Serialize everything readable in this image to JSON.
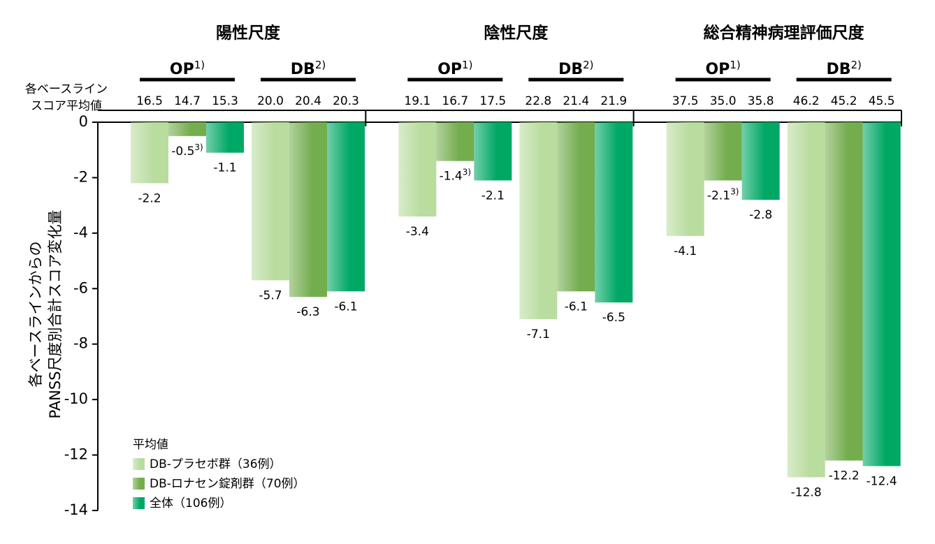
{
  "chart_data": {
    "type": "bar",
    "y_label": [
      "各ベースラインからの",
      "PANSS尺度別合計スコア変化量"
    ],
    "groups": [
      "陽性尺度",
      "陰性尺度",
      "総合精神病理評価尺度"
    ],
    "categories": [
      "OP",
      "DB",
      "OP",
      "DB",
      "OP",
      "DB"
    ],
    "category_notes": [
      "1)",
      "2)",
      "1)",
      "2)",
      "1)",
      "2)"
    ],
    "baseline_label": [
      "各ベースライン",
      "スコア平均値"
    ],
    "legend_title": "平均値",
    "series": [
      {
        "name": "DB-プラセボ群（36例）",
        "color": "#b9dc9f",
        "values": [
          -2.2,
          -5.7,
          -3.4,
          -7.1,
          -4.1,
          -12.8
        ],
        "baseline": [
          16.5,
          {
            "value": 20,
            "label": "20.0"
          },
          19.1,
          22.8,
          37.5,
          46.2
        ]
      },
      {
        "name": "DB-ロナセン錠剤群（70例）",
        "color": "#74ad4e",
        "values": [
          -0.5,
          -6.3,
          -1.4,
          -6.1,
          -2.1,
          -12.2
        ],
        "value_notes": [
          "3)",
          null,
          "3)",
          null,
          "3)",
          null
        ],
        "baseline": [
          14.7,
          20.4,
          16.7,
          21.4,
          {
            "value": 35,
            "label": "35.0"
          },
          45.2
        ]
      },
      {
        "name": "全体（106例）",
        "color": "#00a865",
        "values": [
          -1.1,
          -6.1,
          -2.1,
          -6.5,
          -2.8,
          -12.4
        ],
        "baseline": [
          15.3,
          20.3,
          17.5,
          21.9,
          35.8,
          45.5
        ]
      }
    ],
    "ylim": [
      -14,
      0
    ],
    "yticks": [
      0,
      -2,
      -4,
      -6,
      -8,
      -10,
      -12,
      -14
    ]
  }
}
